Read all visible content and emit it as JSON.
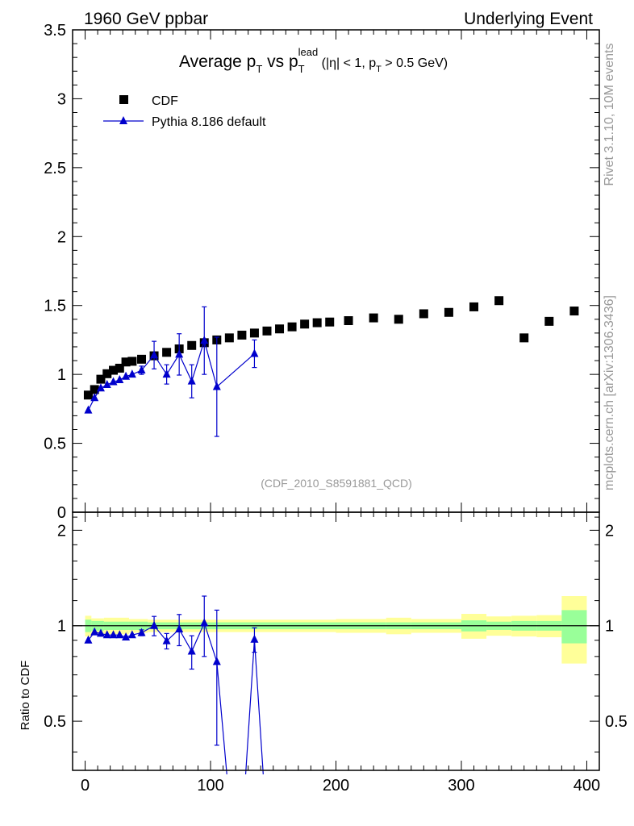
{
  "header": {
    "left": "1960 GeV ppbar",
    "right": "Underlying Event"
  },
  "side_labels": {
    "rivet": "Rivet 3.1.10,  10M events",
    "mcplots": "mcplots.cern.ch [arXiv:1306.3436]"
  },
  "colors": {
    "cdf": "#000000",
    "mc": "#0000cc",
    "band_inner": "#99ff99",
    "band_outer": "#ffff99",
    "watermark": "#999999"
  },
  "chart_data": [
    {
      "id": "main",
      "type": "scatter",
      "title": {
        "prefix": "Average p",
        "sub1": "T",
        "mid": " vs p",
        "sub2": "T",
        "sup2": "lead",
        "cut1": " (|η| < 1, p",
        "cut_sub": "T",
        "cut2": " > 0.5 GeV)"
      },
      "watermark": "(CDF_2010_S8591881_QCD)",
      "xlim": [
        -10,
        410
      ],
      "ylim": [
        0,
        3.5
      ],
      "yticks": [
        0,
        0.5,
        1,
        1.5,
        2,
        2.5,
        3,
        3.5
      ],
      "ytick_labels": [
        "0",
        "0.5",
        "1",
        "1.5",
        "2",
        "2.5",
        "3",
        "3.5"
      ],
      "legend": [
        {
          "label": "CDF",
          "marker": "square"
        },
        {
          "label": "Pythia 8.186 default",
          "marker": "triangle"
        }
      ],
      "series": [
        {
          "name": "CDF",
          "x": [
            2.5,
            7.5,
            12.5,
            17.5,
            22.5,
            27.5,
            32.5,
            37.5,
            45,
            55,
            65,
            75,
            85,
            95,
            105,
            115,
            125,
            135,
            145,
            155,
            165,
            175,
            185,
            195,
            210,
            230,
            250,
            270,
            290,
            310,
            330,
            350,
            370,
            390
          ],
          "y": [
            0.85,
            0.89,
            0.965,
            1.005,
            1.03,
            1.045,
            1.09,
            1.095,
            1.11,
            1.135,
            1.16,
            1.185,
            1.21,
            1.23,
            1.25,
            1.265,
            1.285,
            1.3,
            1.315,
            1.33,
            1.345,
            1.365,
            1.375,
            1.38,
            1.39,
            1.41,
            1.4,
            1.44,
            1.45,
            1.49,
            1.535,
            1.265,
            1.385,
            1.46
          ]
        },
        {
          "name": "Pythia 8.186 default",
          "x": [
            2.5,
            7.5,
            12.5,
            17.5,
            22.5,
            27.5,
            32.5,
            37.5,
            45,
            55,
            65,
            75,
            85,
            95,
            105,
            135
          ],
          "y": [
            0.74,
            0.83,
            0.9,
            0.925,
            0.945,
            0.96,
            0.985,
            1.0,
            1.03,
            1.14,
            1.0,
            1.145,
            0.95,
            1.245,
            0.91,
            1.15
          ],
          "err": [
            0.02,
            0.02,
            0.02,
            0.02,
            0.02,
            0.02,
            0.02,
            0.02,
            0.03,
            0.1,
            0.07,
            0.15,
            0.12,
            0.245,
            0.36,
            0.1
          ]
        }
      ]
    },
    {
      "id": "ratio",
      "type": "line",
      "ylabel": "Ratio to CDF",
      "xlim": [
        -10,
        410
      ],
      "ylim": [
        0.35,
        2.28
      ],
      "xticks": [
        0,
        100,
        200,
        300,
        400
      ],
      "xtick_labels": [
        "0",
        "100",
        "200",
        "300",
        "400"
      ],
      "yticks": [
        0.5,
        1,
        2
      ],
      "ytick_labels": [
        "0.5",
        "1",
        "2"
      ],
      "bands": [
        {
          "x0": 0,
          "x1": 5,
          "inner": 0.045,
          "outer": 0.075
        },
        {
          "x0": 5,
          "x1": 15,
          "inner": 0.035,
          "outer": 0.055
        },
        {
          "x0": 15,
          "x1": 35,
          "inner": 0.03,
          "outer": 0.06
        },
        {
          "x0": 35,
          "x1": 50,
          "inner": 0.03,
          "outer": 0.05
        },
        {
          "x0": 50,
          "x1": 200,
          "inner": 0.025,
          "outer": 0.045
        },
        {
          "x0": 200,
          "x1": 240,
          "inner": 0.025,
          "outer": 0.05
        },
        {
          "x0": 240,
          "x1": 260,
          "inner": 0.025,
          "outer": 0.06
        },
        {
          "x0": 260,
          "x1": 300,
          "inner": 0.025,
          "outer": 0.05
        },
        {
          "x0": 300,
          "x1": 320,
          "inner": 0.04,
          "outer": 0.09
        },
        {
          "x0": 320,
          "x1": 340,
          "inner": 0.03,
          "outer": 0.07
        },
        {
          "x0": 340,
          "x1": 360,
          "inner": 0.035,
          "outer": 0.075
        },
        {
          "x0": 360,
          "x1": 380,
          "inner": 0.035,
          "outer": 0.08
        },
        {
          "x0": 380,
          "x1": 400,
          "inner": 0.12,
          "outer": 0.24
        }
      ],
      "series": [
        {
          "name": "Pythia 8.186 default / CDF",
          "x": [
            2.5,
            7.5,
            12.5,
            17.5,
            22.5,
            27.5,
            32.5,
            37.5,
            45,
            55,
            65,
            75,
            85,
            95,
            105,
            135
          ],
          "y": [
            0.9,
            0.955,
            0.945,
            0.935,
            0.935,
            0.935,
            0.92,
            0.935,
            0.95,
            1.0,
            0.895,
            0.975,
            0.83,
            1.02,
            0.77,
            0.905
          ],
          "err": [
            0.01,
            0.01,
            0.01,
            0.01,
            0.01,
            0.01,
            0.01,
            0.01,
            0.02,
            0.07,
            0.05,
            0.11,
            0.1,
            0.22,
            0.35,
            0.08
          ]
        }
      ],
      "offscale_segment": {
        "from": [
          105,
          0.77
        ],
        "via_low": [
          113,
          0.34
        ],
        "back": [
          128,
          0.34
        ],
        "to": [
          135,
          0.905
        ]
      }
    }
  ]
}
